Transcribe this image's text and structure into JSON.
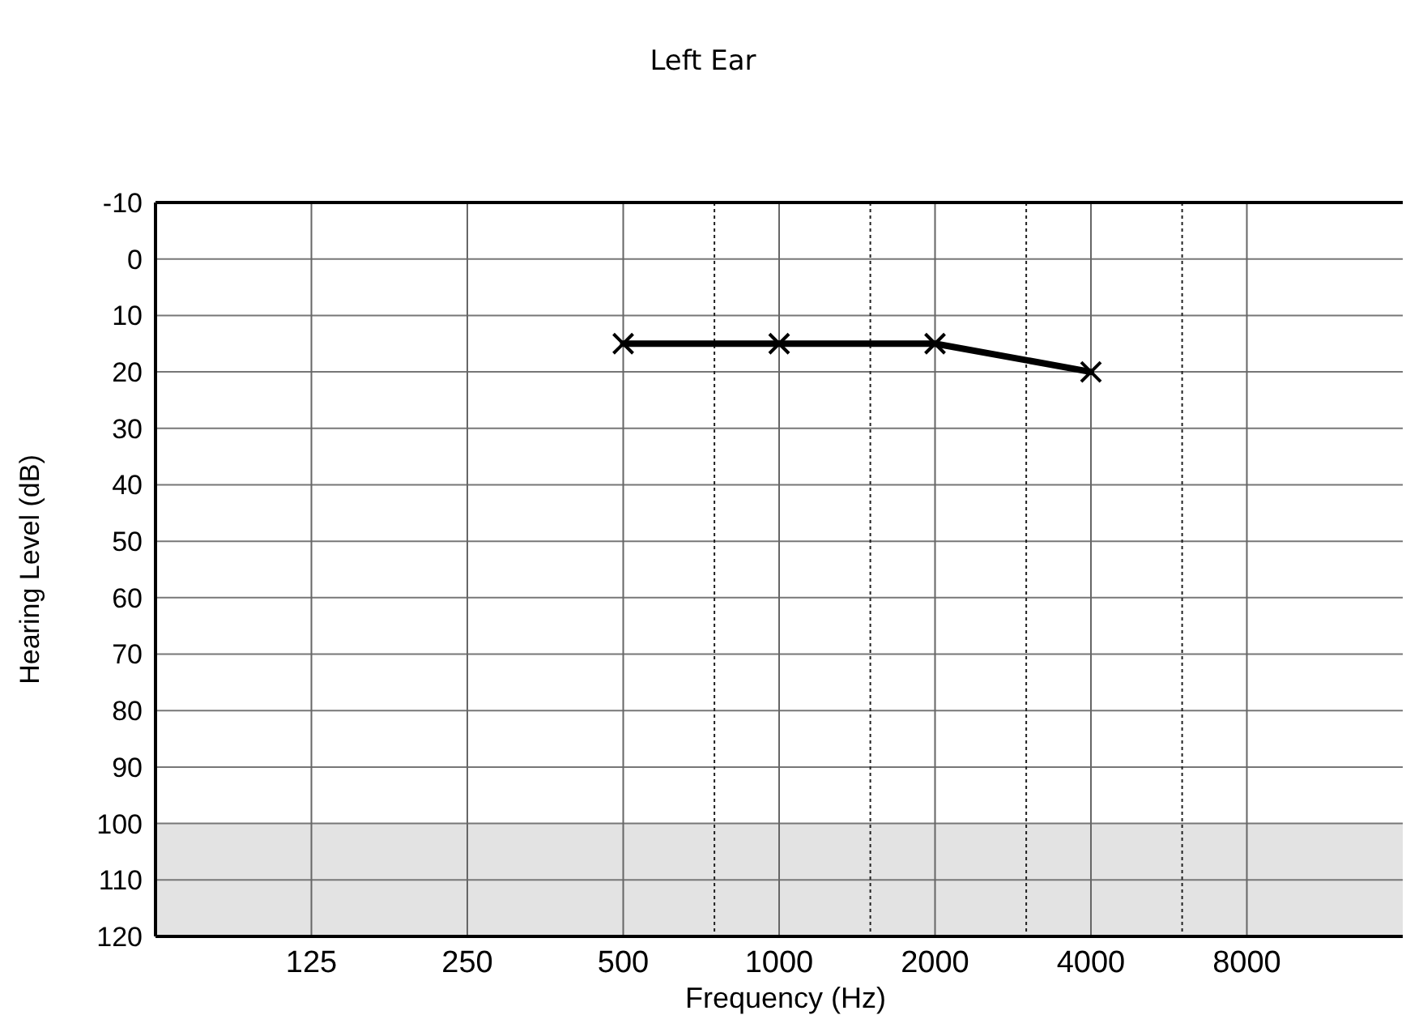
{
  "chart_data": {
    "type": "line",
    "title": "Left Ear",
    "xlabel": "Frequency (Hz)",
    "ylabel": "Hearing Level (dB)",
    "log": "x",
    "xlim": [
      62.5,
      16000
    ],
    "xticks": [
      125,
      250,
      500,
      {
        "value": 750,
        "label": null
      },
      1000,
      {
        "value": 1500,
        "label": null
      },
      2000,
      {
        "value": 3000,
        "label": null
      },
      4000,
      {
        "value": 6000,
        "label": null
      },
      8000
    ],
    "ylim": [
      120,
      -10
    ],
    "yticks": [
      -10,
      0,
      10,
      20,
      30,
      40,
      50,
      60,
      70,
      80,
      90,
      100,
      110,
      120
    ],
    "grid": true,
    "marker": "cross",
    "line_style": "solid",
    "bands": [
      {
        "axis": "y",
        "from": 100,
        "to": 120,
        "color": "#e3e3e3"
      }
    ],
    "series": [
      {
        "color": "#000000",
        "x": [
          500,
          1000,
          2000,
          4000
        ],
        "values": [
          15,
          15,
          15,
          20
        ]
      }
    ]
  }
}
